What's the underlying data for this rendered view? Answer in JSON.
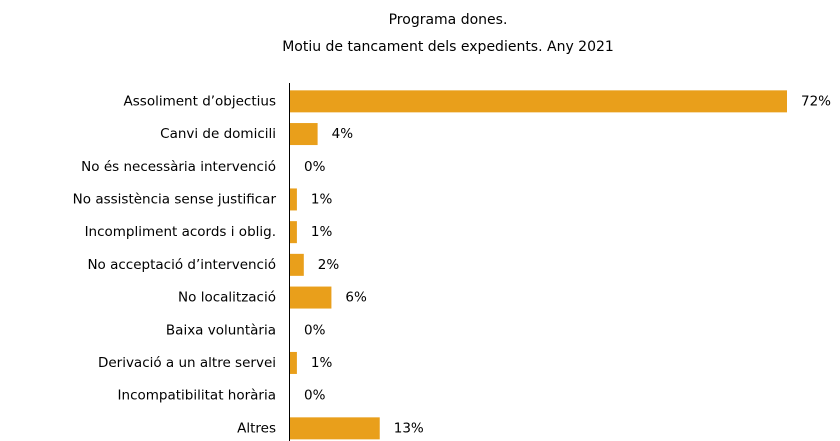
{
  "chart_data": {
    "type": "bar",
    "orientation": "horizontal",
    "title": "Programa dones.",
    "subtitle": "Motiu de tancament dels expedients. Any 2021",
    "categories": [
      "Assoliment d’objectius",
      "Canvi de domicili",
      "No és necessària intervenció",
      "No assistència sense justificar",
      "Incompliment acords i oblig.",
      "No acceptació d’intervenció",
      "No localització",
      "Baixa voluntària",
      "Derivació a un altre servei",
      "Incompatibilitat horària",
      "Altres"
    ],
    "values": [
      72,
      4,
      0,
      1,
      1,
      2,
      6,
      0,
      1,
      0,
      13
    ],
    "value_labels": [
      "72%",
      "4%",
      "0%",
      "1%",
      "1%",
      "2%",
      "6%",
      "0%",
      "1%",
      "0%",
      "13%"
    ],
    "color": "#e99f1b"
  }
}
